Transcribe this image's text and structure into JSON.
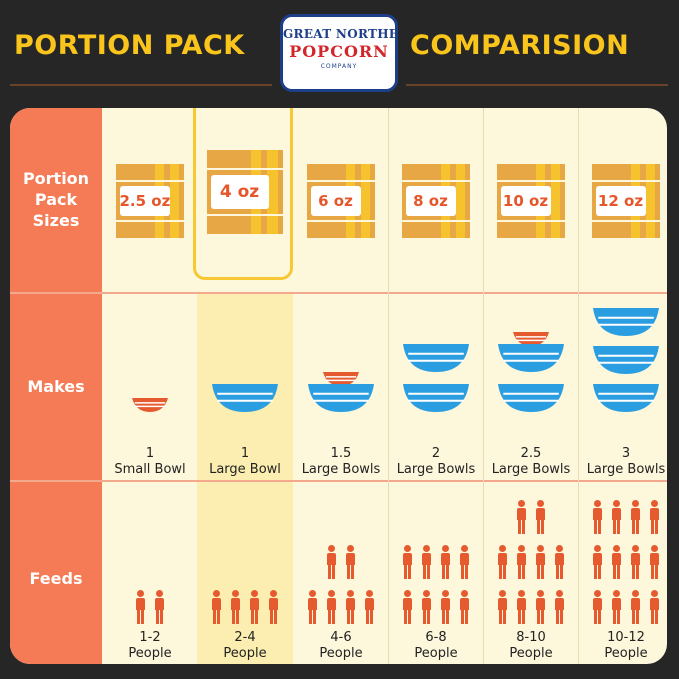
{
  "header": {
    "title_left": "PORTION PACK",
    "title_right": "COMPARISION",
    "logo": {
      "line1": "GREAT NORTHERN",
      "line2": "POPCORN",
      "line3": "COMPANY",
      "border_color": "#1d3f8a"
    }
  },
  "rows": {
    "sizes": "Portion Pack Sizes",
    "makes": "Makes",
    "feeds": "Feeds"
  },
  "columns": [
    {
      "size": "2.5 oz",
      "bowl_count": "1",
      "bowl_unit": "Small Bowl",
      "feeds": "1-2",
      "feeds_unit": "People",
      "highlight": false
    },
    {
      "size": "4 oz",
      "bowl_count": "1",
      "bowl_unit": "Large Bowl",
      "feeds": "2-4",
      "feeds_unit": "People",
      "highlight": true
    },
    {
      "size": "6 oz",
      "bowl_count": "1.5",
      "bowl_unit": "Large Bowls",
      "feeds": "4-6",
      "feeds_unit": "People",
      "highlight": false
    },
    {
      "size": "8 oz",
      "bowl_count": "2",
      "bowl_unit": "Large Bowls",
      "feeds": "6-8",
      "feeds_unit": "People",
      "highlight": false
    },
    {
      "size": "10 oz",
      "bowl_count": "2.5",
      "bowl_unit": "Large Bowls",
      "feeds": "8-10",
      "feeds_unit": "People",
      "highlight": false
    },
    {
      "size": "12 oz",
      "bowl_count": "3",
      "bowl_unit": "Large Bowls",
      "feeds": "10-12",
      "feeds_unit": "People",
      "highlight": false
    }
  ],
  "colors": {
    "background": "#262626",
    "title": "#f9c51c",
    "sidebar": "#f47b55",
    "panel": "#fdf7dc",
    "highlight": "#f8c734",
    "bowl_blue": "#2a9ee0",
    "bowl_orange": "#e55a2f",
    "pack_gold": "#e7a744",
    "person": "#e55a2f"
  }
}
